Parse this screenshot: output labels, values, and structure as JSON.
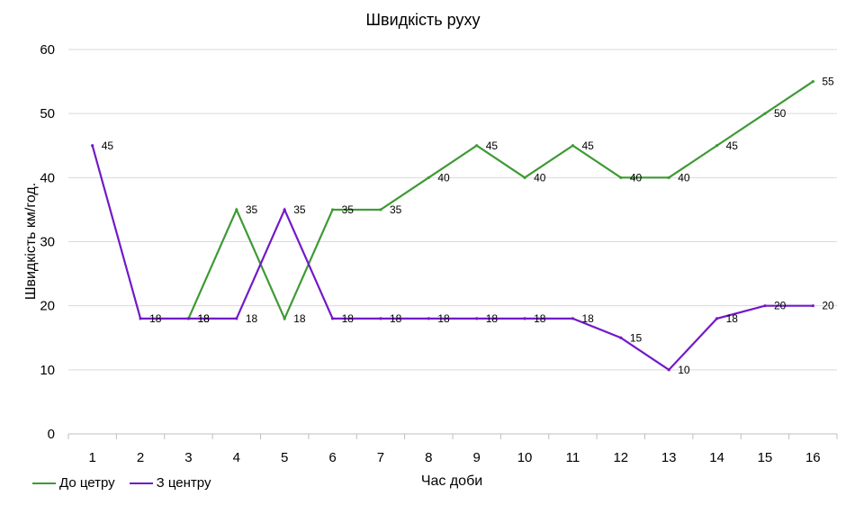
{
  "chart_data": {
    "type": "line",
    "title": "Швидкість руху",
    "xlabel": "Час доби",
    "ylabel": "Швидкість км/год.",
    "categories": [
      "1",
      "2",
      "3",
      "4",
      "5",
      "6",
      "7",
      "8",
      "9",
      "10",
      "11",
      "12",
      "13",
      "14",
      "15",
      "16"
    ],
    "ylim": [
      0,
      60
    ],
    "yticks": [
      "0",
      "10",
      "20",
      "30",
      "40",
      "50",
      "60"
    ],
    "grid": true,
    "legend_position": "bottom-left",
    "series": [
      {
        "name": "До цетру",
        "color": "#3e9a34",
        "values": [
          null,
          null,
          18,
          35,
          18,
          35,
          35,
          40,
          45,
          40,
          45,
          40,
          40,
          45,
          50,
          55
        ]
      },
      {
        "name": "З центру",
        "color": "#7219c7",
        "values": [
          45,
          18,
          18,
          18,
          35,
          18,
          18,
          18,
          18,
          18,
          18,
          15,
          10,
          18,
          20,
          20
        ]
      }
    ]
  }
}
